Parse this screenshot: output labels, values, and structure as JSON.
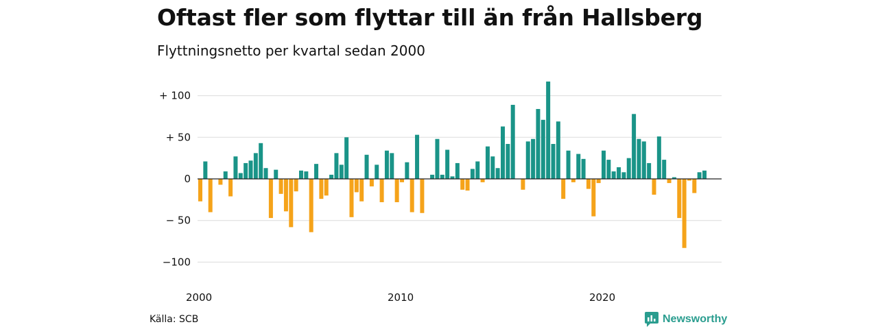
{
  "title": "Oftast fler som flyttar till än från Hallsberg",
  "subtitle": "Flyttningsnetto per kvartal sedan 2000",
  "source": "Källa: SCB",
  "brand": "Newsworthy",
  "colors": {
    "positive": "#1a9488",
    "negative": "#f5a31a",
    "grid": "#dcdcdc",
    "zero": "#222222"
  },
  "chart_data": {
    "type": "bar",
    "ylim": [
      -110,
      125
    ],
    "yticks": [
      {
        "value": 100,
        "label": "+ 100"
      },
      {
        "value": 50,
        "label": "+  50"
      },
      {
        "value": 0,
        "label": "0"
      },
      {
        "value": -50,
        "label": "− 50"
      },
      {
        "value": -100,
        "label": "−100"
      }
    ],
    "xticks": [
      {
        "index": 0,
        "label": "2000"
      },
      {
        "index": 40,
        "label": "2010"
      },
      {
        "index": 80,
        "label": "2020"
      }
    ],
    "grid": true,
    "legend": "none",
    "values": [
      -27,
      21,
      -40,
      0,
      -7,
      9,
      -21,
      27,
      7,
      19,
      22,
      31,
      43,
      13,
      -47,
      11,
      -18,
      -39,
      -58,
      -15,
      10,
      9,
      -64,
      18,
      -24,
      -20,
      5,
      31,
      17,
      50,
      -46,
      -16,
      -27,
      29,
      -9,
      17,
      -28,
      34,
      31,
      -28,
      -4,
      20,
      -40,
      53,
      -41,
      0,
      5,
      48,
      5,
      35,
      3,
      19,
      -13,
      -14,
      12,
      21,
      -4,
      39,
      27,
      13,
      63,
      42,
      89,
      0,
      -13,
      45,
      48,
      84,
      71,
      117,
      42,
      69,
      -24,
      34,
      -4,
      30,
      24,
      -12,
      -45,
      -5,
      34,
      23,
      9,
      14,
      8,
      25,
      78,
      48,
      45,
      19,
      -19,
      51,
      23,
      -5,
      2,
      -47,
      -83,
      -2,
      -17,
      8,
      10
    ]
  }
}
